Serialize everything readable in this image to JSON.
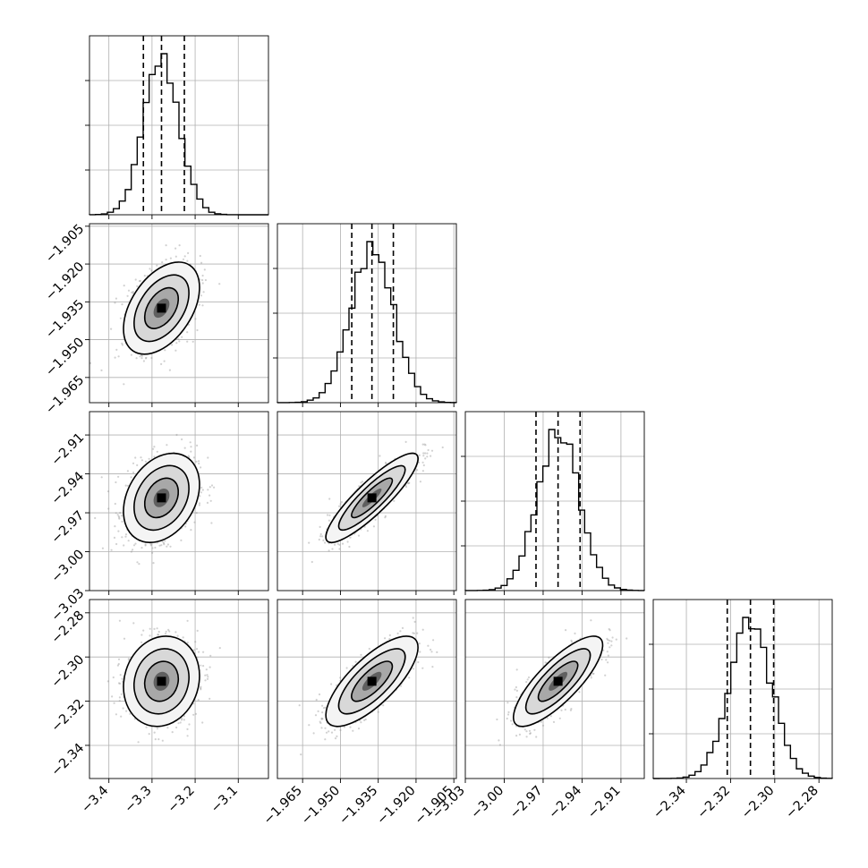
{
  "chart_data": {
    "type": "corner",
    "description_labels": [],
    "parameters": [
      {
        "range": [
          -3.445,
          -3.03
        ],
        "ticks": [
          -3.4,
          -3.3,
          -3.2,
          -3.1
        ],
        "tick_labels": [
          "−3.4",
          "−3.3",
          "−3.2",
          "−3.1"
        ],
        "mean": -3.278,
        "sd": 0.041,
        "quantiles": [
          -3.32,
          -3.278,
          -3.225
        ]
      },
      {
        "range": [
          -1.975,
          -1.904
        ],
        "ticks": [
          -1.905,
          -1.92,
          -1.935,
          -1.95,
          -1.965
        ],
        "tick_labels": [
          "−1.905",
          "−1.920",
          "−1.935",
          "−1.950",
          "−1.965"
        ],
        "xtick_values": [
          -1.965,
          -1.95,
          -1.935,
          -1.92,
          -1.905
        ],
        "xtick_labels": [
          "−1.965",
          "−1.950",
          "−1.935",
          "−1.920",
          "−1.905"
        ],
        "mean": -1.9375,
        "sd": 0.0085,
        "quantiles": [
          -1.9455,
          -1.9375,
          -1.929
        ]
      },
      {
        "range": [
          -3.03,
          -2.892
        ],
        "ticks": [
          -2.91,
          -2.94,
          -2.97,
          -3.0,
          -3.03
        ],
        "tick_labels": [
          "−2.91",
          "−2.94",
          "−2.97",
          "−3.00",
          "−3.03"
        ],
        "xtick_values": [
          -3.03,
          -3.0,
          -2.97,
          -2.94,
          -2.91
        ],
        "xtick_labels": [
          "−3.03",
          "−3.00",
          "−2.97",
          "−2.94",
          "−2.91"
        ],
        "mean": -2.9585,
        "sd": 0.016,
        "quantiles": [
          -2.9755,
          -2.9585,
          -2.9415
        ]
      },
      {
        "range": [
          -2.355,
          -2.274
        ],
        "ticks": [
          -2.28,
          -2.3,
          -2.32,
          -2.34
        ],
        "tick_labels": [
          "−2.28",
          "−2.30",
          "−2.32",
          "−2.34"
        ],
        "xtick_values": [
          -2.34,
          -2.32,
          -2.3,
          -2.28
        ],
        "xtick_labels": [
          "−2.34",
          "−2.32",
          "−2.30",
          "−2.28"
        ],
        "mean": -2.311,
        "sd": 0.0095,
        "quantiles": [
          -2.3215,
          -2.311,
          -2.3005
        ]
      }
    ],
    "correlations": [
      [
        1,
        0,
        0,
        0
      ],
      [
        0.45,
        1,
        0,
        0
      ],
      [
        0.3,
        0.88,
        1,
        0
      ],
      [
        0.12,
        0.75,
        0.8,
        1
      ]
    ],
    "grid": true,
    "colors": {
      "line": "#000000",
      "scatter": "#9a9a9a",
      "grid": "#b0b0b0",
      "background": "#ffffff"
    }
  }
}
